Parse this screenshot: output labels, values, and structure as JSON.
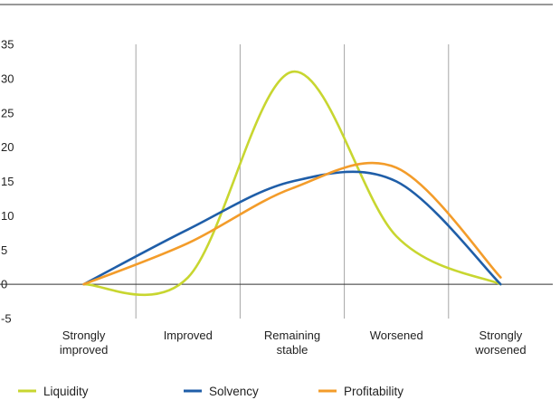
{
  "chart_data": {
    "type": "line",
    "title": "",
    "xlabel": "",
    "ylabel": "",
    "categories": [
      [
        "Strongly",
        "improved"
      ],
      [
        "Improved"
      ],
      [
        "Remaining",
        "stable"
      ],
      [
        "Worsened"
      ],
      [
        "Strongly",
        "worsened"
      ]
    ],
    "ylim": [
      -5,
      35
    ],
    "yticks": [
      -5,
      0,
      5,
      10,
      15,
      20,
      25,
      30,
      35
    ],
    "grid": "vertical",
    "legend": "bottom",
    "smooth": true,
    "series": [
      {
        "name": "Liquidity",
        "color": "#c8d630",
        "values": [
          0,
          1,
          31,
          7,
          0
        ]
      },
      {
        "name": "Solvency",
        "color": "#1f5ea8",
        "values": [
          0,
          8,
          15,
          15,
          0
        ]
      },
      {
        "name": "Profitability",
        "color": "#f39c2a",
        "values": [
          0,
          6,
          14,
          17,
          1
        ]
      }
    ]
  }
}
